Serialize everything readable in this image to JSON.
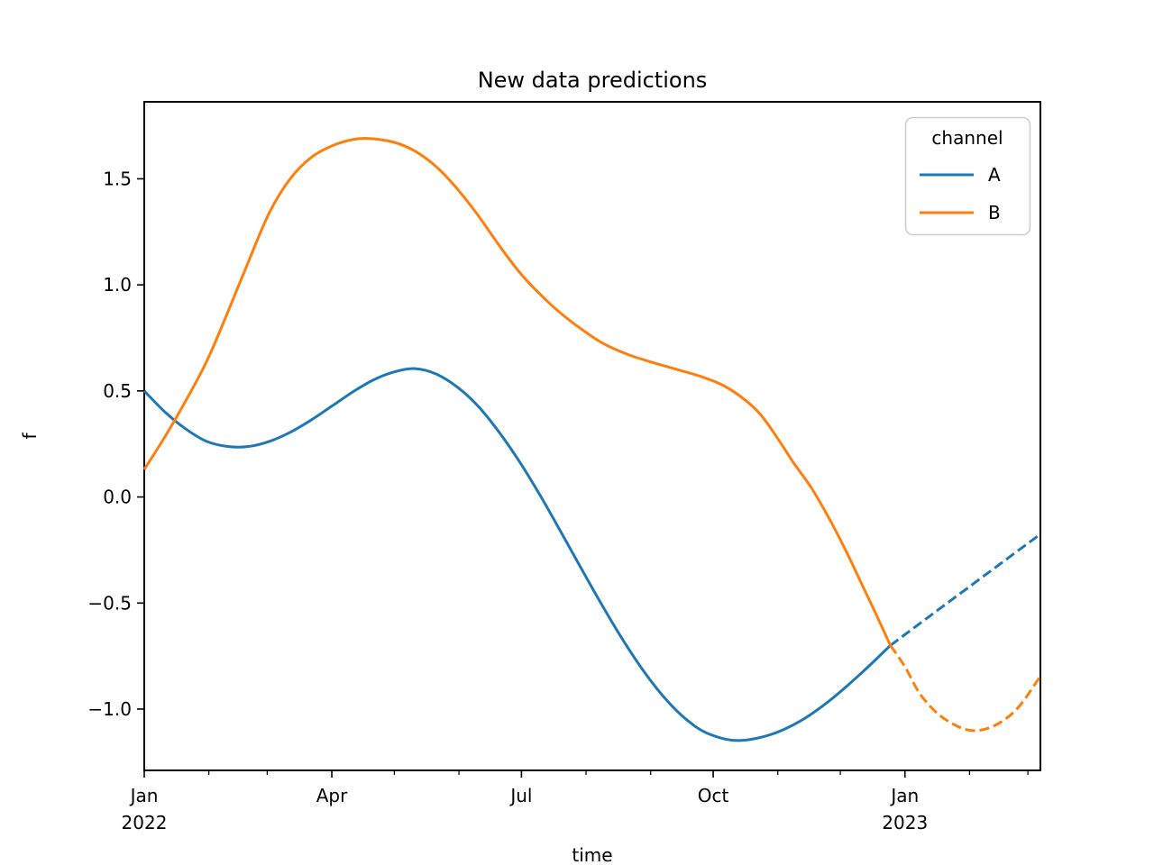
{
  "title": "New data predictions",
  "chart_data": {
    "type": "line",
    "title": "New data predictions",
    "xlabel": "time",
    "ylabel": "f",
    "x_unit": "days since Jan 1 2022",
    "x_range_days": [
      0,
      430
    ],
    "ylim": [
      -1.289,
      1.863
    ],
    "grid": "off",
    "x_major_ticks": [
      {
        "line1": "Jan",
        "line2": "2022",
        "day": 0
      },
      {
        "line1": "Apr",
        "line2": "",
        "day": 90
      },
      {
        "line1": "Jul",
        "line2": "",
        "day": 181
      },
      {
        "line1": "Oct",
        "line2": "",
        "day": 273
      },
      {
        "line1": "Jan",
        "line2": "2023",
        "day": 365
      }
    ],
    "x_minor_tick_days": [
      31,
      59,
      120,
      151,
      212,
      243,
      304,
      334,
      396,
      424
    ],
    "y_ticks": [
      {
        "label": "1.5",
        "value": 1.5
      },
      {
        "label": "1.0",
        "value": 1.0
      },
      {
        "label": "0.5",
        "value": 0.5
      },
      {
        "label": "0.0",
        "value": 0.0
      },
      {
        "label": "−0.5",
        "value": -0.5
      },
      {
        "label": "−1.0",
        "value": -1.0
      }
    ],
    "legend": {
      "title": "channel",
      "position": "upper right",
      "entries": [
        {
          "label": "A",
          "color": "#1f77b4"
        },
        {
          "label": "B",
          "color": "#ff7f0e"
        }
      ]
    },
    "series": [
      {
        "name": "A",
        "color": "#1f77b4",
        "solid_meaning": "observed 2022 data",
        "dashed_meaning": "new data prediction",
        "solid": [
          [
            0,
            0.5
          ],
          [
            10,
            0.4
          ],
          [
            20,
            0.32
          ],
          [
            30,
            0.262
          ],
          [
            40,
            0.238
          ],
          [
            50,
            0.238
          ],
          [
            60,
            0.262
          ],
          [
            70,
            0.305
          ],
          [
            80,
            0.362
          ],
          [
            90,
            0.428
          ],
          [
            100,
            0.495
          ],
          [
            110,
            0.552
          ],
          [
            120,
            0.59
          ],
          [
            130,
            0.605
          ],
          [
            140,
            0.58
          ],
          [
            150,
            0.52
          ],
          [
            160,
            0.43
          ],
          [
            170,
            0.309
          ],
          [
            180,
            0.167
          ],
          [
            190,
            0.007
          ],
          [
            200,
            -0.166
          ],
          [
            210,
            -0.342
          ],
          [
            220,
            -0.516
          ],
          [
            230,
            -0.679
          ],
          [
            240,
            -0.826
          ],
          [
            250,
            -0.951
          ],
          [
            260,
            -1.048
          ],
          [
            270,
            -1.113
          ],
          [
            284,
            -1.148
          ],
          [
            300,
            -1.122
          ],
          [
            315,
            -1.055
          ],
          [
            330,
            -0.951
          ],
          [
            345,
            -0.822
          ],
          [
            358,
            -0.7
          ]
        ],
        "dashed": [
          [
            358,
            -0.7
          ],
          [
            376,
            -0.568
          ],
          [
            394,
            -0.437
          ],
          [
            412,
            -0.306
          ],
          [
            430,
            -0.175
          ]
        ]
      },
      {
        "name": "B",
        "color": "#ff7f0e",
        "solid_meaning": "observed 2022 data",
        "dashed_meaning": "new data prediction",
        "solid": [
          [
            0,
            0.13
          ],
          [
            10,
            0.285
          ],
          [
            20,
            0.455
          ],
          [
            30,
            0.64
          ],
          [
            40,
            0.87
          ],
          [
            50,
            1.11
          ],
          [
            60,
            1.34
          ],
          [
            70,
            1.5
          ],
          [
            80,
            1.6
          ],
          [
            90,
            1.655
          ],
          [
            100,
            1.685
          ],
          [
            108,
            1.69
          ],
          [
            120,
            1.672
          ],
          [
            130,
            1.63
          ],
          [
            140,
            1.558
          ],
          [
            150,
            1.455
          ],
          [
            160,
            1.33
          ],
          [
            170,
            1.19
          ],
          [
            180,
            1.06
          ],
          [
            190,
            0.955
          ],
          [
            200,
            0.865
          ],
          [
            210,
            0.79
          ],
          [
            220,
            0.725
          ],
          [
            232,
            0.672
          ],
          [
            244,
            0.634
          ],
          [
            256,
            0.6
          ],
          [
            268,
            0.565
          ],
          [
            278,
            0.525
          ],
          [
            288,
            0.46
          ],
          [
            296,
            0.385
          ],
          [
            304,
            0.275
          ],
          [
            312,
            0.155
          ],
          [
            320,
            0.045
          ],
          [
            328,
            -0.09
          ],
          [
            336,
            -0.24
          ],
          [
            344,
            -0.405
          ],
          [
            351,
            -0.55
          ],
          [
            358,
            -0.7
          ]
        ],
        "dashed": [
          [
            358,
            -0.7
          ],
          [
            365,
            -0.8
          ],
          [
            372,
            -0.925
          ],
          [
            380,
            -1.015
          ],
          [
            388,
            -1.07
          ],
          [
            396,
            -1.1
          ],
          [
            404,
            -1.093
          ],
          [
            412,
            -1.055
          ],
          [
            420,
            -0.985
          ],
          [
            430,
            -0.845
          ]
        ]
      }
    ]
  }
}
